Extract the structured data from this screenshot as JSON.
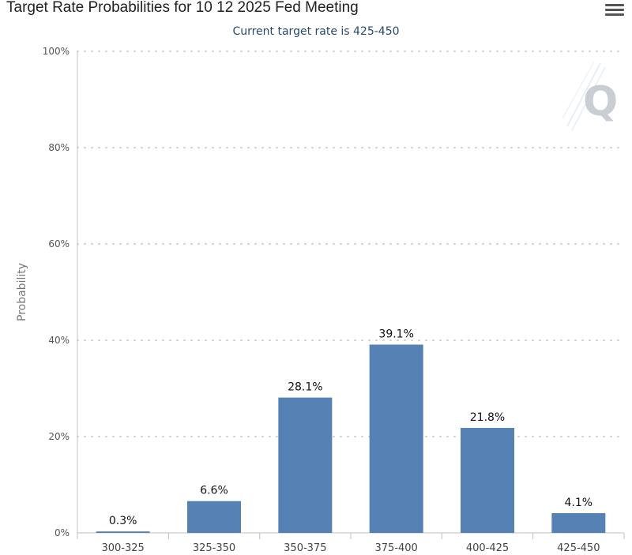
{
  "chart_data": {
    "type": "bar",
    "title": "Target Rate Probabilities for 10 12 2025 Fed Meeting",
    "subtitle": "Current target rate is 425-450",
    "xlabel": "",
    "ylabel": "Probability",
    "categories": [
      "300-325",
      "325-350",
      "350-375",
      "375-400",
      "400-425",
      "425-450"
    ],
    "values": [
      0.3,
      6.6,
      28.1,
      39.1,
      21.8,
      4.1
    ],
    "data_labels": [
      "0.3%",
      "6.6%",
      "28.1%",
      "39.1%",
      "21.8%",
      "4.1%"
    ],
    "ylim": [
      0,
      100
    ],
    "yticks": [
      0,
      20,
      40,
      60,
      80,
      100
    ],
    "ytick_labels": [
      "0%",
      "20%",
      "40%",
      "60%",
      "80%",
      "100%"
    ],
    "grid": true,
    "bar_color": "#5581b5"
  },
  "menu_icon": "hamburger-menu-icon",
  "watermark_icon": "q-logo-icon"
}
